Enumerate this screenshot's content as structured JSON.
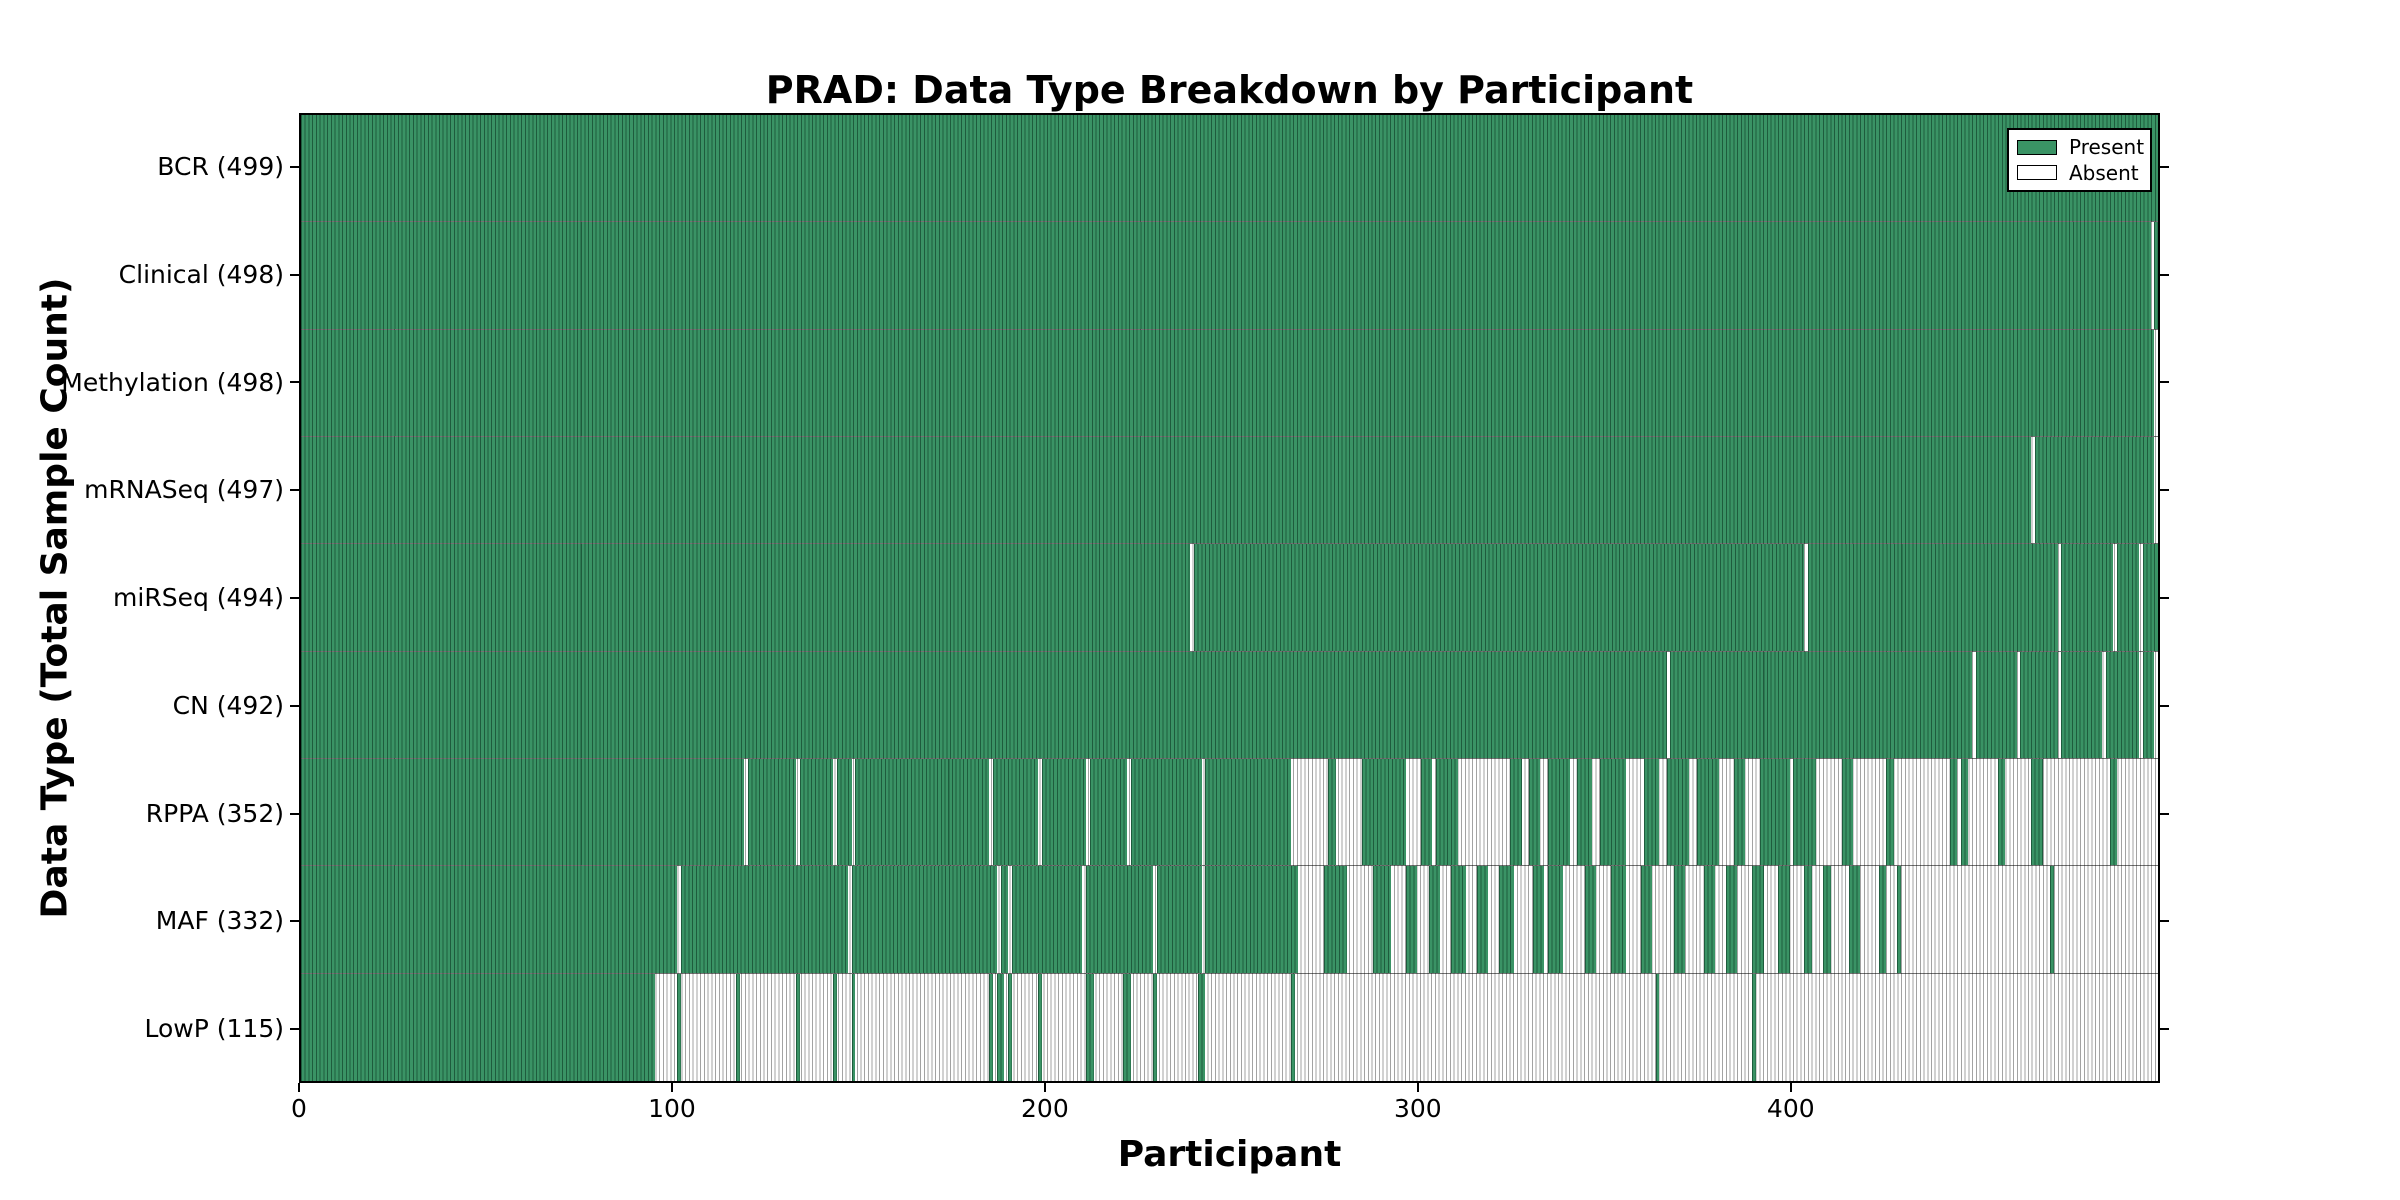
{
  "title": "PRAD: Data Type Breakdown by Participant",
  "xlabel": "Participant",
  "ylabel": "Data Type (Total Sample Count)",
  "legend": {
    "present_label": "Present",
    "absent_label": "Absent"
  },
  "colors": {
    "present_fill": "#3a9365",
    "present_edge": "#1e5c3d",
    "absent_fill": "#ffffff",
    "absent_edge": "#a3a3a3",
    "axis": "#000000"
  },
  "chart_data": {
    "type": "heatmap",
    "title": "PRAD: Data Type Breakdown by Participant",
    "xlabel": "Participant",
    "ylabel": "Data Type (Total Sample Count)",
    "legend_entries": [
      "Present",
      "Absent"
    ],
    "legend_position": "upper right",
    "n_participants": 499,
    "x_range": [
      0,
      499
    ],
    "x_ticks": [
      0,
      100,
      200,
      300,
      400
    ],
    "x_tick_labels": [
      "0",
      "100",
      "200",
      "300",
      "400"
    ],
    "rows": [
      {
        "name": "BCR",
        "label": "BCR (499)",
        "count": 499,
        "present_ranges": [
          [
            0,
            499
          ]
        ]
      },
      {
        "name": "Clinical",
        "label": "Clinical (498)",
        "count": 498,
        "present_ranges": [
          [
            0,
            497
          ],
          [
            498,
            499
          ]
        ]
      },
      {
        "name": "Methylation",
        "label": "Methylation (498)",
        "count": 498,
        "present_ranges": [
          [
            0,
            498
          ]
        ]
      },
      {
        "name": "mRNASeq",
        "label": "mRNASeq (497)",
        "count": 497,
        "present_ranges": [
          [
            0,
            465
          ],
          [
            466,
            498
          ]
        ]
      },
      {
        "name": "miRSeq",
        "label": "miRSeq (494)",
        "count": 494,
        "present_ranges": [
          [
            0,
            239
          ],
          [
            240,
            404
          ],
          [
            405,
            472
          ],
          [
            473,
            487
          ],
          [
            488,
            494
          ],
          [
            495,
            499
          ]
        ]
      },
      {
        "name": "CN",
        "label": "CN (492)",
        "count": 492,
        "present_ranges": [
          [
            0,
            367
          ],
          [
            368,
            449
          ],
          [
            450,
            461
          ],
          [
            462,
            472
          ],
          [
            473,
            484
          ],
          [
            485,
            494
          ],
          [
            495,
            498
          ]
        ]
      },
      {
        "name": "RPPA",
        "label": "RPPA (352)",
        "count": 352,
        "present_ranges": [
          [
            0,
            119
          ],
          [
            120,
            133
          ],
          [
            134,
            143
          ],
          [
            144,
            148
          ],
          [
            149,
            185
          ],
          [
            186,
            198
          ],
          [
            199,
            211
          ],
          [
            212,
            222
          ],
          [
            223,
            242
          ],
          [
            243,
            266
          ],
          [
            276,
            278
          ],
          [
            285,
            297
          ],
          [
            301,
            304
          ],
          [
            305,
            311
          ],
          [
            325,
            328
          ],
          [
            330,
            333
          ],
          [
            335,
            341
          ],
          [
            343,
            347
          ],
          [
            349,
            356
          ],
          [
            361,
            365
          ],
          [
            367,
            373
          ],
          [
            375,
            381
          ],
          [
            385,
            388
          ],
          [
            392,
            400
          ],
          [
            401,
            407
          ],
          [
            414,
            417
          ],
          [
            426,
            428
          ],
          [
            443,
            445
          ],
          [
            446,
            448
          ],
          [
            456,
            458
          ],
          [
            465,
            468
          ],
          [
            486,
            488
          ]
        ]
      },
      {
        "name": "MAF",
        "label": "MAF (332)",
        "count": 332,
        "present_ranges": [
          [
            0,
            101
          ],
          [
            102,
            147
          ],
          [
            148,
            187
          ],
          [
            188,
            190
          ],
          [
            191,
            210
          ],
          [
            211,
            229
          ],
          [
            230,
            242
          ],
          [
            243,
            268
          ],
          [
            275,
            281
          ],
          [
            288,
            293
          ],
          [
            297,
            300
          ],
          [
            303,
            306
          ],
          [
            309,
            313
          ],
          [
            316,
            319
          ],
          [
            322,
            326
          ],
          [
            331,
            334
          ],
          [
            335,
            339
          ],
          [
            345,
            348
          ],
          [
            352,
            356
          ],
          [
            360,
            363
          ],
          [
            369,
            372
          ],
          [
            377,
            380
          ],
          [
            383,
            386
          ],
          [
            390,
            393
          ],
          [
            397,
            400
          ],
          [
            404,
            406
          ],
          [
            409,
            411
          ],
          [
            416,
            419
          ],
          [
            424,
            426
          ],
          [
            429,
            430
          ],
          [
            470,
            471
          ]
        ]
      },
      {
        "name": "LowP",
        "label": "LowP (115)",
        "count": 115,
        "present_ranges": [
          [
            0,
            95
          ],
          [
            101,
            102
          ],
          [
            117,
            118
          ],
          [
            133,
            134
          ],
          [
            143,
            144
          ],
          [
            148,
            149
          ],
          [
            185,
            186
          ],
          [
            187,
            189
          ],
          [
            190,
            191
          ],
          [
            198,
            199
          ],
          [
            211,
            213
          ],
          [
            221,
            223
          ],
          [
            229,
            230
          ],
          [
            241,
            243
          ],
          [
            266,
            267
          ],
          [
            364,
            365
          ],
          [
            390,
            391
          ]
        ]
      }
    ]
  }
}
